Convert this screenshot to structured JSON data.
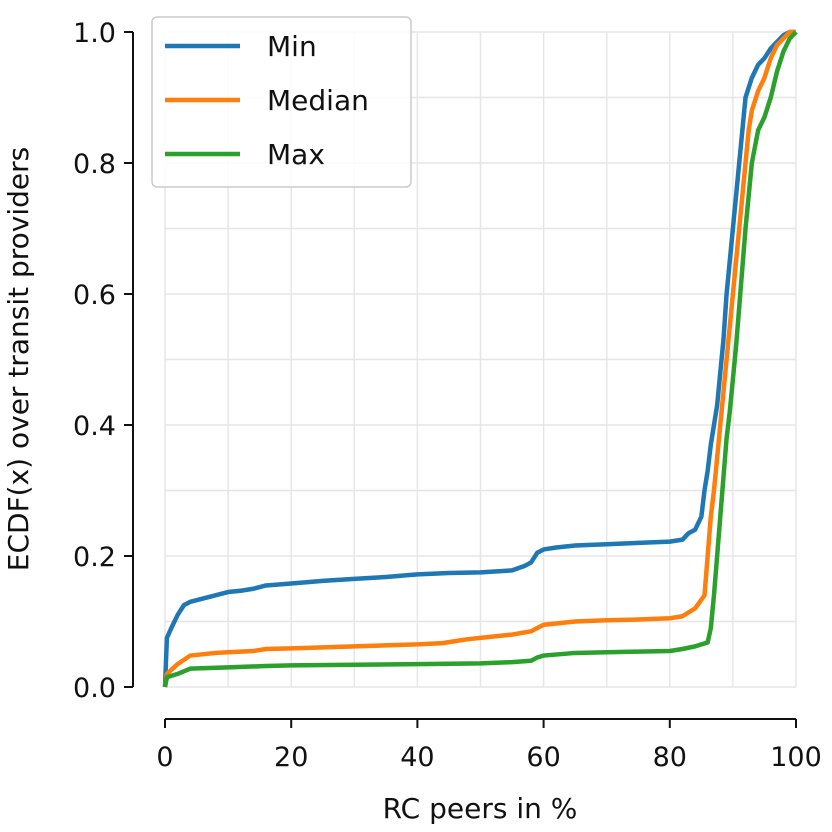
{
  "chart_data": {
    "type": "line",
    "xlabel": "RC peers in %",
    "ylabel": "ECDF(x) over transit providers",
    "xlim": [
      0,
      100
    ],
    "ylim": [
      0,
      1.0
    ],
    "x_ticks": [
      0,
      20,
      40,
      60,
      80,
      100
    ],
    "x_tick_labels": [
      "0",
      "20",
      "40",
      "60",
      "80",
      "100"
    ],
    "y_ticks": [
      0.0,
      0.2,
      0.4,
      0.6,
      0.8,
      1.0
    ],
    "y_tick_labels": [
      "0.0",
      "0.2",
      "0.4",
      "0.6",
      "0.8",
      "1.0"
    ],
    "grid": true,
    "legend_position": "top-left",
    "series": [
      {
        "name": "Min",
        "color": "#1f77b4",
        "x": [
          0,
          0.3,
          1,
          2,
          3,
          4,
          6,
          8,
          10,
          12,
          14,
          16,
          20,
          25,
          30,
          35,
          40,
          45,
          50,
          55,
          57,
          58,
          59,
          60,
          62,
          65,
          70,
          75,
          80,
          82,
          83,
          84,
          85,
          85.5,
          86,
          86.5,
          87,
          87.5,
          88,
          88.5,
          89,
          89.5,
          90,
          90.5,
          91,
          91.5,
          92,
          93,
          94,
          95,
          96,
          97,
          98,
          99,
          100
        ],
        "y": [
          0.0,
          0.075,
          0.09,
          0.11,
          0.125,
          0.13,
          0.135,
          0.14,
          0.145,
          0.147,
          0.15,
          0.155,
          0.158,
          0.162,
          0.165,
          0.168,
          0.172,
          0.174,
          0.175,
          0.178,
          0.185,
          0.19,
          0.205,
          0.21,
          0.213,
          0.216,
          0.218,
          0.22,
          0.222,
          0.225,
          0.235,
          0.24,
          0.26,
          0.3,
          0.33,
          0.37,
          0.4,
          0.43,
          0.48,
          0.53,
          0.6,
          0.65,
          0.7,
          0.75,
          0.8,
          0.85,
          0.9,
          0.93,
          0.95,
          0.96,
          0.975,
          0.985,
          0.995,
          1.0,
          1.0
        ]
      },
      {
        "name": "Median",
        "color": "#ff7f0e",
        "x": [
          0,
          0.3,
          2,
          4,
          8,
          10,
          14,
          16,
          20,
          30,
          40,
          44,
          46,
          48,
          50,
          55,
          58,
          59,
          60,
          62,
          65,
          70,
          75,
          80,
          82,
          84,
          85.5,
          86,
          86.5,
          87,
          87.5,
          88,
          88.5,
          89,
          89.5,
          90,
          90.5,
          91,
          91.5,
          92,
          92.5,
          93,
          94,
          95,
          96,
          97,
          98,
          99,
          100
        ],
        "y": [
          0.0,
          0.02,
          0.035,
          0.048,
          0.052,
          0.053,
          0.055,
          0.058,
          0.059,
          0.062,
          0.065,
          0.067,
          0.07,
          0.073,
          0.075,
          0.08,
          0.085,
          0.09,
          0.095,
          0.097,
          0.1,
          0.102,
          0.103,
          0.105,
          0.108,
          0.12,
          0.14,
          0.2,
          0.26,
          0.3,
          0.35,
          0.4,
          0.45,
          0.5,
          0.55,
          0.6,
          0.65,
          0.7,
          0.75,
          0.8,
          0.85,
          0.88,
          0.91,
          0.93,
          0.96,
          0.98,
          0.99,
          1.0,
          1.0
        ]
      },
      {
        "name": "Max",
        "color": "#2ca02c",
        "x": [
          0,
          0.3,
          2,
          4,
          10,
          16,
          20,
          30,
          40,
          50,
          55,
          58,
          59,
          60,
          65,
          70,
          75,
          80,
          82,
          84,
          86,
          86.5,
          87,
          87.5,
          88,
          88.5,
          89,
          89.5,
          90,
          90.5,
          91,
          91.5,
          92,
          92.5,
          93,
          94,
          95,
          96,
          97,
          98,
          99,
          100
        ],
        "y": [
          0.0,
          0.015,
          0.02,
          0.028,
          0.03,
          0.032,
          0.033,
          0.034,
          0.035,
          0.036,
          0.038,
          0.04,
          0.045,
          0.048,
          0.052,
          0.053,
          0.054,
          0.055,
          0.058,
          0.062,
          0.068,
          0.09,
          0.14,
          0.2,
          0.26,
          0.32,
          0.38,
          0.42,
          0.47,
          0.52,
          0.58,
          0.64,
          0.7,
          0.75,
          0.8,
          0.85,
          0.87,
          0.9,
          0.94,
          0.97,
          0.99,
          1.0
        ]
      }
    ]
  }
}
